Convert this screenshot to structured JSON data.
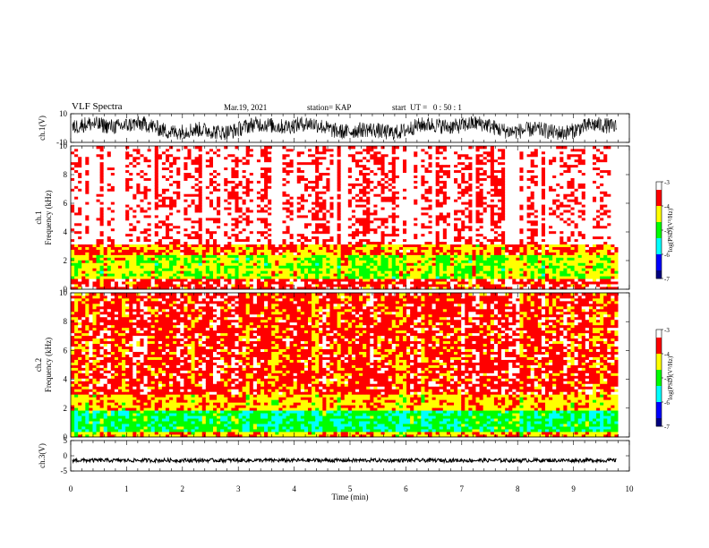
{
  "header": {
    "title": "VLF Spectra",
    "date": "Mar.19, 2021",
    "station": "station= KAP",
    "start": "start  UT =   0 : 50 : 1"
  },
  "chart_data": [
    {
      "type": "line",
      "panel": "ch1-waveform",
      "ylabel": "ch.1(V)",
      "ylim": [
        -10,
        10
      ],
      "yticks": [
        10,
        -10
      ],
      "xlim": [
        0,
        10
      ],
      "trace_color": "#000000",
      "note_values": "dense waveform oscillating roughly between -8 and 8 V, upper part near clipping"
    },
    {
      "type": "heatmap",
      "panel": "ch1-spectrogram",
      "ylabel": "Frequency (kHz)",
      "channel_label": "ch.1",
      "ylim": [
        0,
        10
      ],
      "yticks": [
        0,
        2,
        4,
        6,
        8,
        10
      ],
      "xlim": [
        0,
        10
      ],
      "data_end_min": 9.8,
      "level_bands": [
        {
          "fmin": 0.0,
          "fmax": 0.8,
          "level": -3.6
        },
        {
          "fmin": 0.8,
          "fmax": 2.4,
          "level": -4.6
        },
        {
          "fmin": 2.4,
          "fmax": 3.1,
          "level": -4.0
        },
        {
          "fmin": 3.1,
          "fmax": 10.0,
          "level": -3.2
        }
      ],
      "colorbar": {
        "label": "log(PSD)(V²/Hz)",
        "ticks": [
          -3,
          -4,
          -5,
          -6,
          -7
        ],
        "range": [
          -7,
          -3
        ]
      }
    },
    {
      "type": "heatmap",
      "panel": "ch2-spectrogram",
      "ylabel": "Frequency (kHz)",
      "channel_label": "ch.2",
      "ylim": [
        0,
        10
      ],
      "yticks": [
        0,
        2,
        4,
        6,
        8,
        10
      ],
      "xlim": [
        0,
        10
      ],
      "data_end_min": 9.8,
      "level_bands": [
        {
          "fmin": 0.0,
          "fmax": 0.3,
          "level": -4.2
        },
        {
          "fmin": 0.3,
          "fmax": 1.8,
          "level": -5.2
        },
        {
          "fmin": 1.8,
          "fmax": 3.0,
          "level": -4.2
        },
        {
          "fmin": 3.0,
          "fmax": 10.0,
          "level": -3.7
        }
      ],
      "colorbar": {
        "label": "log(PSD)(V²/Hz)",
        "ticks": [
          -3,
          -4,
          -5,
          -6,
          -7
        ],
        "range": [
          -7,
          -3
        ]
      }
    },
    {
      "type": "line",
      "panel": "ch3-waveform",
      "ylabel": "ch.3(V)",
      "ylim": [
        -5,
        5
      ],
      "yticks": [
        5,
        0,
        -5
      ],
      "xlim": [
        0,
        10
      ],
      "xlabel": "Time (min)",
      "xticks": [
        0,
        1,
        2,
        3,
        4,
        5,
        6,
        7,
        8,
        9,
        10
      ],
      "trace_level": -1.5,
      "trace_spread": 0.6,
      "trace_color": "#000000"
    }
  ],
  "colormap": [
    "#000080",
    "#0000ff",
    "#00ffff",
    "#00ff00",
    "#ffff00",
    "#ff0000",
    "#ffffff"
  ]
}
